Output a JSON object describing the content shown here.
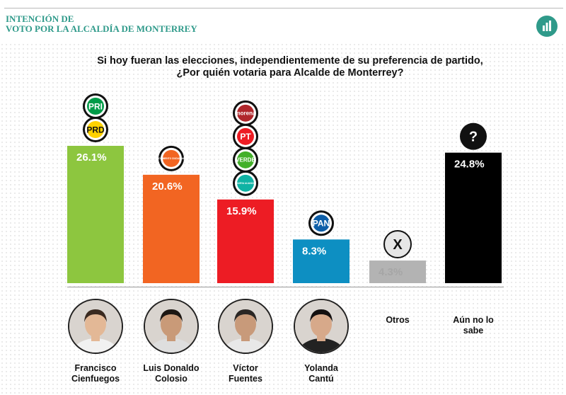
{
  "header": {
    "title_line1": "INTENCIÓN DE",
    "title_line2": "VOTO POR LA ALCALDÍA DE MONTERREY",
    "icon": "bar-chart-icon",
    "color": "#2f9a8a"
  },
  "question": {
    "line1": "Si hoy fueran las elecciones, independientemente de su preferencia de partido,",
    "line2": "¿Por quién votaria para Alcalde de Monterrey?"
  },
  "chart_data": {
    "type": "bar",
    "title": "Si hoy fueran las elecciones, independientemente de su preferencia de partido, ¿Por quién votaria para Alcalde de Monterrey?",
    "categories": [
      "Francisco Cienfuegos",
      "Luis Donaldo Colosio",
      "Víctor Fuentes",
      "Yolanda Cantú",
      "Otros",
      "Aún no lo sabe"
    ],
    "values": [
      26.1,
      20.6,
      15.9,
      8.3,
      4.3,
      24.8
    ],
    "labels": [
      "26.1%",
      "20.6%",
      "15.9%",
      "8.3%",
      "4.3%",
      "24.8%"
    ],
    "colors": [
      "#8dc63f",
      "#f26522",
      "#ed1c24",
      "#0d8fc2",
      "#b3b3b3",
      "#000000"
    ],
    "label_colors": [
      "#ffffff",
      "#ffffff",
      "#ffffff",
      "#ffffff",
      "#a6a6a6",
      "#ffffff"
    ],
    "ylim": [
      0,
      26.1
    ],
    "grid": false,
    "legend": "none"
  },
  "party_logos": [
    {
      "candidate": "Francisco Cienfuegos",
      "logos": [
        {
          "text": "PRI",
          "color": "#009b48",
          "icon": "pri-logo-icon"
        },
        {
          "text": "PRD",
          "color": "#ffd200",
          "icon": "prd-logo-icon"
        }
      ]
    },
    {
      "candidate": "Luis Donaldo Colosio",
      "logos": [
        {
          "text": "MOVIMIENTO CIUDADANO",
          "color": "#f26522",
          "icon": "movimiento-ciudadano-logo-icon"
        }
      ]
    },
    {
      "candidate": "Víctor Fuentes",
      "logos": [
        {
          "text": "morena",
          "color": "#b0262b",
          "icon": "morena-logo-icon"
        },
        {
          "text": "PT",
          "color": "#ed1c24",
          "icon": "pt-logo-icon"
        },
        {
          "text": "VERDE",
          "color": "#43b02a",
          "icon": "pvem-logo-icon"
        },
        {
          "text": "NUEVA ALIANZA",
          "color": "#0fb3a4",
          "icon": "nueva-alianza-logo-icon"
        }
      ]
    },
    {
      "candidate": "Yolanda Cantú",
      "logos": [
        {
          "text": "PAN",
          "color": "#0d5ea8",
          "icon": "pan-logo-icon"
        }
      ]
    },
    {
      "candidate": "Otros",
      "logos": [
        {
          "text": "X",
          "color": "#b3b3b3",
          "icon": "x-icon"
        }
      ]
    },
    {
      "candidate": "Aún no lo sabe",
      "logos": [
        {
          "text": "?",
          "color": "#000000",
          "icon": "question-mark-icon"
        }
      ]
    }
  ],
  "candidates": [
    {
      "line1": "Francisco",
      "line2": "Cienfuegos",
      "photo": "photo-francisco-cienfuegos",
      "skin": "#e3b896",
      "hair": "#3a2a20",
      "shirt": "#f1f1f1"
    },
    {
      "line1": "Luis Donaldo",
      "line2": "Colosio",
      "photo": "photo-luis-donaldo-colosio",
      "skin": "#c99a78",
      "hair": "#1d1713",
      "shirt": "#dedede"
    },
    {
      "line1": "Víctor",
      "line2": "Fuentes",
      "photo": "photo-victor-fuentes",
      "skin": "#c89a7a",
      "hair": "#2a2624",
      "shirt": "#e8e8e8"
    },
    {
      "line1": "Yolanda",
      "line2": "Cantú",
      "photo": "photo-yolanda-cantu",
      "skin": "#d7a98a",
      "hair": "#141010",
      "shirt": "#222222"
    },
    {
      "line1": "Otros",
      "line2": ""
    },
    {
      "line1": "Aún no lo",
      "line2": "sabe"
    }
  ]
}
